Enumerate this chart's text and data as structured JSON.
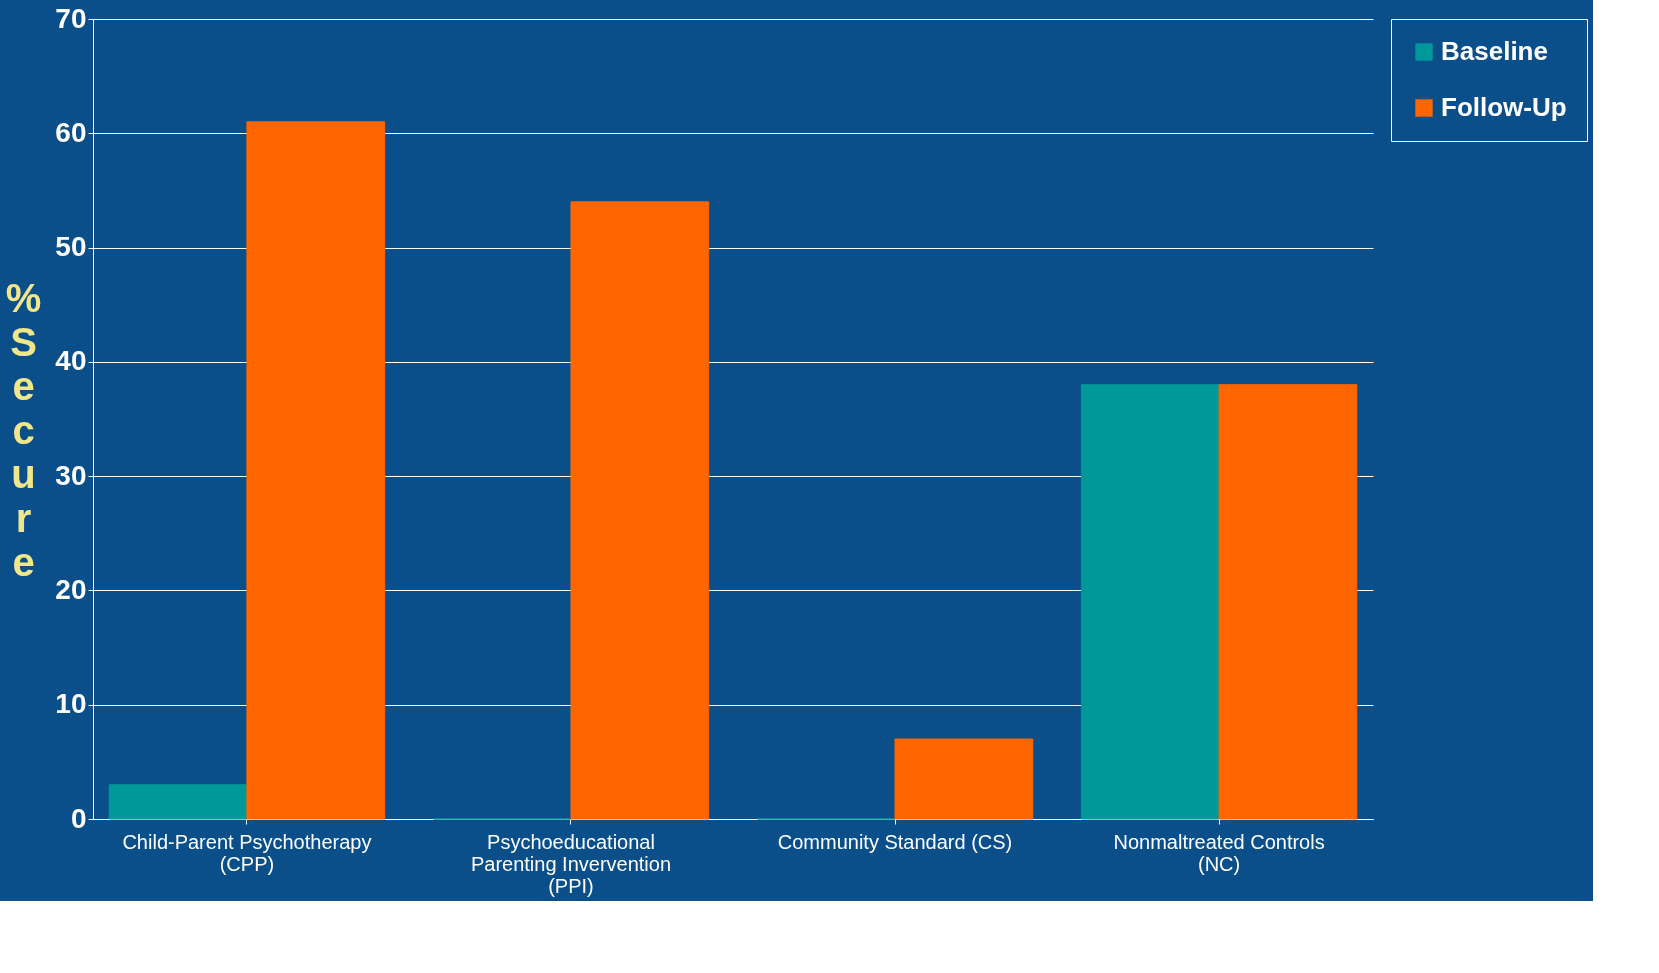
{
  "chart_data": {
    "type": "bar",
    "ylabel": "% Secure",
    "categories": [
      "Child-Parent Psychotherapy (CPP)",
      "Psychoeducational Parenting Invervention (PPI)",
      "Community Standard (CS)",
      "Nonmaltreated Controls (NC)"
    ],
    "series": [
      {
        "name": "Baseline",
        "color": "#009999",
        "values": [
          3,
          0,
          0,
          38
        ]
      },
      {
        "name": "Follow-Up",
        "color": "#ff6600",
        "values": [
          61,
          54,
          7,
          38
        ]
      }
    ],
    "ylim": [
      0,
      70
    ],
    "yticks": [
      0,
      10,
      20,
      30,
      40,
      50,
      60,
      70
    ],
    "grid": "y",
    "legend": "right"
  }
}
